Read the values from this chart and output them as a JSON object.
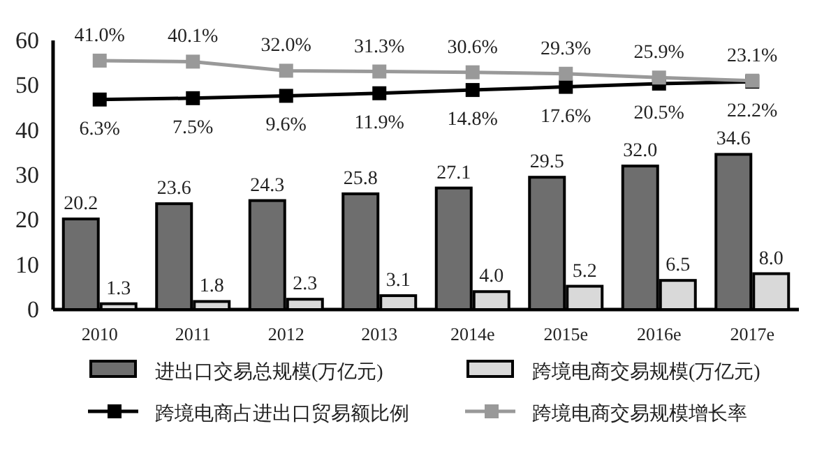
{
  "chart_data": {
    "type": "bar",
    "categories": [
      "2010",
      "2011",
      "2012",
      "2013",
      "2014e",
      "2015e",
      "2016e",
      "2017e"
    ],
    "ylim": [
      0,
      60
    ],
    "yticks": [
      0,
      10,
      20,
      30,
      40,
      50,
      60
    ],
    "y2lim": [
      -181,
      59
    ],
    "legend": "bottom",
    "grid": false,
    "marker": "square",
    "line_style": "solid",
    "series": [
      {
        "name": "进出口交易总规模(万亿元)",
        "color": "#6e6e6e",
        "values": [
          20.2,
          23.6,
          24.3,
          25.8,
          27.1,
          29.5,
          32.0,
          34.6
        ],
        "value_labels": [
          "20.2",
          "23.6",
          "24.3",
          "25.8",
          "27.1",
          "29.5",
          "32.0",
          "34.6"
        ]
      },
      {
        "name": "跨境电商交易规模(万亿元)",
        "color": "#d9d9d9",
        "values": [
          1.3,
          1.8,
          2.3,
          3.1,
          4.0,
          5.2,
          6.5,
          8.0
        ],
        "value_labels": [
          "1.3",
          "1.8",
          "2.3",
          "3.1",
          "4.0",
          "5.2",
          "6.5",
          "8.0"
        ]
      },
      {
        "name": "跨境电商占进出口贸易额比例",
        "type": "line",
        "axis": "y2",
        "color": "#000000",
        "values": [
          6.3,
          7.5,
          9.6,
          11.9,
          14.8,
          17.6,
          20.5,
          22.2
        ],
        "value_labels": [
          "6.3%",
          "7.5%",
          "9.6%",
          "11.9%",
          "14.8%",
          "17.6%",
          "20.5%",
          "22.2%"
        ]
      },
      {
        "name": "跨境电商交易规模增长率",
        "type": "line",
        "axis": "y2",
        "color": "#999999",
        "values": [
          41.0,
          40.1,
          32.0,
          31.3,
          30.6,
          29.3,
          25.9,
          23.1
        ],
        "value_labels": [
          "41.0%",
          "40.1%",
          "32.0%",
          "31.3%",
          "30.6%",
          "29.3%",
          "25.9%",
          "23.1%"
        ]
      }
    ]
  }
}
